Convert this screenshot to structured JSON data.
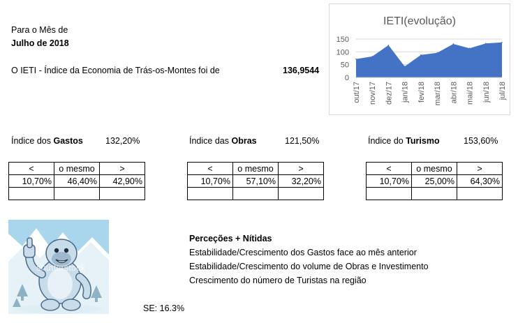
{
  "header": {
    "line1": "Para o Mês de",
    "month": "Julho de 2018"
  },
  "ieti": {
    "label": "O IETI - Índice da Economia de Trás-os-Montes foi de",
    "value": "136,9544"
  },
  "indices": [
    {
      "prefix": "Índice dos ",
      "name": "Gastos",
      "value": "132,20%",
      "table": {
        "headers": [
          "<",
          "o mesmo",
          ">"
        ],
        "values": [
          "10,70%",
          "46,40%",
          "42,90%"
        ]
      }
    },
    {
      "prefix": "Índice das ",
      "name": "Obras",
      "value": "121,50%",
      "table": {
        "headers": [
          "<",
          "o mesmo",
          ">"
        ],
        "values": [
          "10,70%",
          "57,10%",
          "32,20%"
        ]
      }
    },
    {
      "prefix": "Índice do ",
      "name": "Turismo",
      "value": "153,60%",
      "table": {
        "headers": [
          "<",
          "o mesmo",
          ">"
        ],
        "values": [
          "10,70%",
          "25,00%",
          "64,30%"
        ]
      }
    }
  ],
  "perceptions": {
    "title": "Perceções + Nítidas",
    "items": [
      "Estabilidade/Crescimento dos Gastos face ao mês anterior",
      "Estabilidade/Crescimento do volume de Obras e Investimento",
      "Crescimento do número de Turistas na região"
    ]
  },
  "se_label": "SE: 16.3%",
  "watermark": "shutterstock",
  "colors": {
    "series": "#4472c4",
    "axis": "#bfbfbf",
    "grid": "#d9d9d9",
    "text": "#595959"
  },
  "chart_data": {
    "type": "area",
    "title": "IETI(evolução)",
    "categories": [
      "out/17",
      "nov/17",
      "dez/17",
      "jan/18",
      "fev/18",
      "mar/18",
      "abr/18",
      "mai/18",
      "jun/18",
      "jul/18"
    ],
    "values": [
      72,
      82,
      126,
      43,
      88,
      96,
      131,
      114,
      133,
      137
    ],
    "ylim": [
      0,
      150
    ],
    "yticks": [
      0,
      50,
      100,
      150
    ],
    "grid": true,
    "legend": "none"
  }
}
